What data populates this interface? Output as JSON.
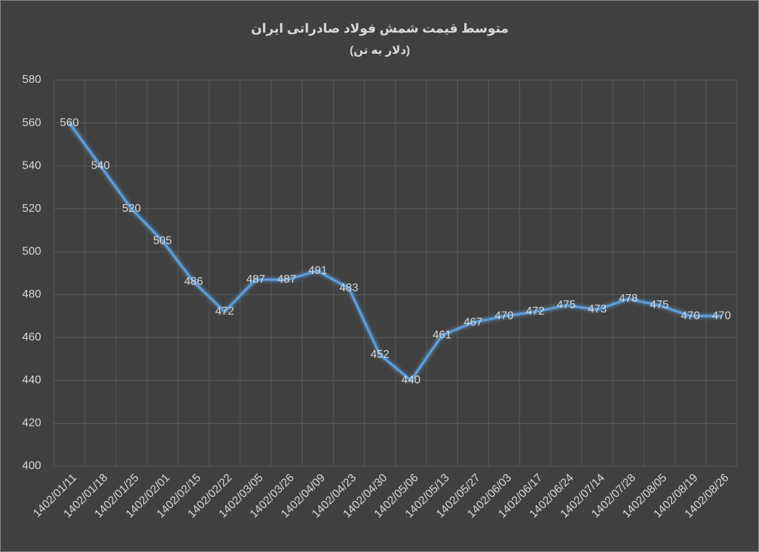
{
  "chart_data": {
    "type": "line",
    "title": "متوسط قیمت شمش فولاد صادراتی ایران",
    "subtitle": "(دلار به تن)",
    "categories": [
      "1402/01/11",
      "1402/01/18",
      "1402/01/25",
      "1402/02/01",
      "1402/02/15",
      "1402/02/22",
      "1402/03/05",
      "1402/03/26",
      "1402/04/09",
      "1402/04/23",
      "1402/04/30",
      "1402/05/06",
      "1402/05/13",
      "1402/05/27",
      "1402/06/03",
      "1402/06/17",
      "1402/06/24",
      "1402/07/14",
      "1402/07/28",
      "1402/08/05",
      "1402/08/19",
      "1402/08/26"
    ],
    "values": [
      560,
      540,
      520,
      505,
      486,
      472,
      487,
      487,
      491,
      483,
      452,
      440,
      461,
      467,
      470,
      472,
      475,
      473,
      478,
      475,
      470,
      470
    ],
    "color": "#5b9bd5",
    "ylim": [
      400,
      580
    ],
    "yticks": [
      400,
      420,
      440,
      460,
      480,
      500,
      520,
      540,
      560,
      580
    ],
    "grid": true,
    "data_labels": true
  }
}
